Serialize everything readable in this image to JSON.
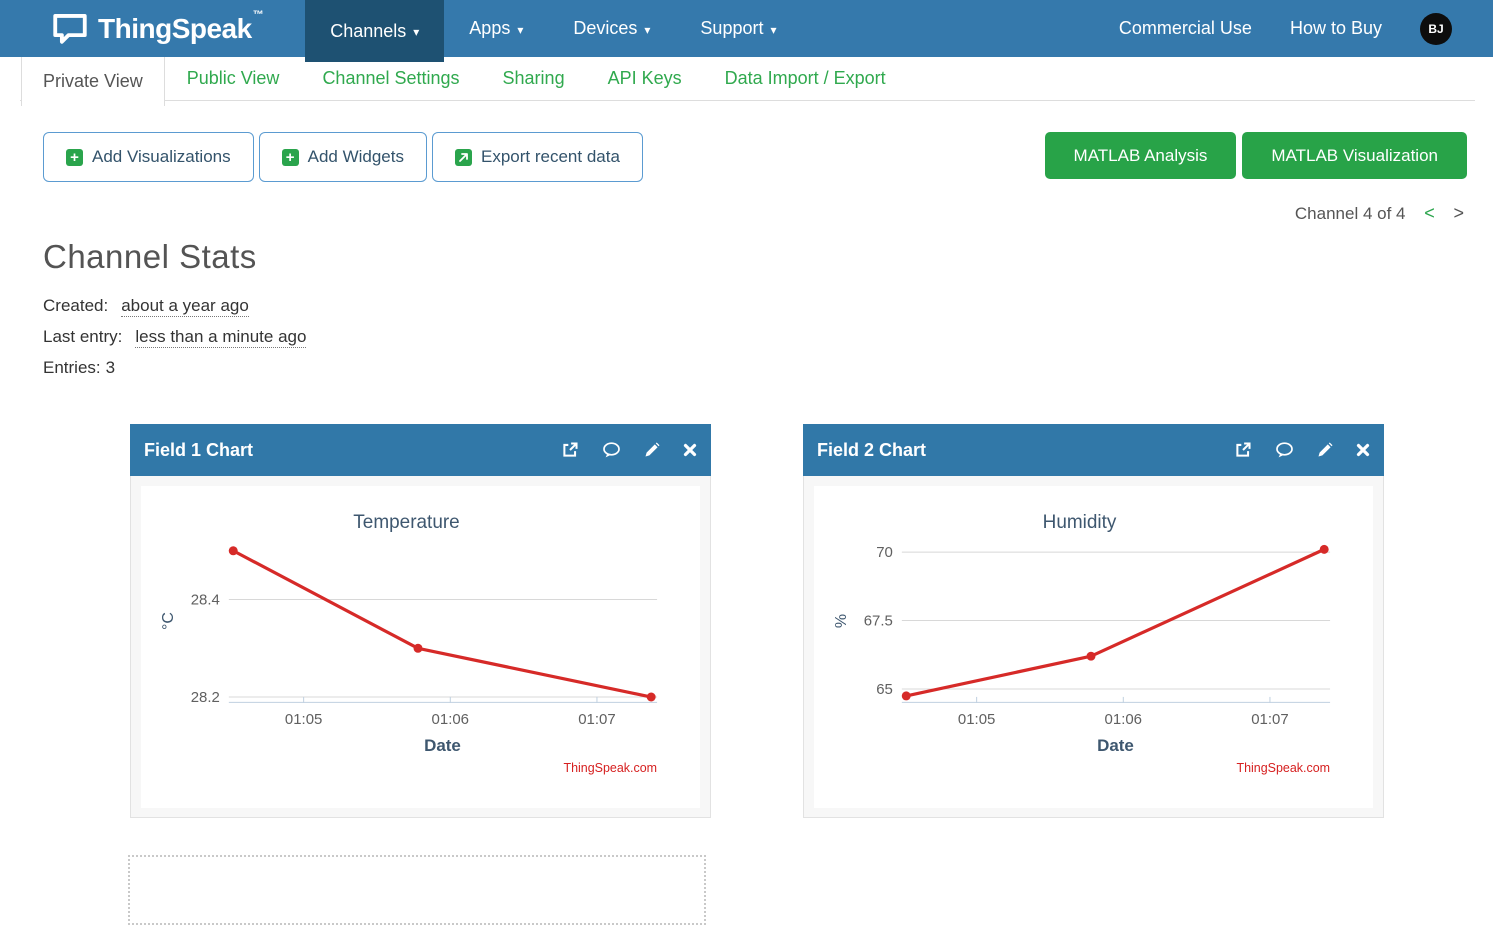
{
  "navbar": {
    "brand": "ThingSpeak",
    "brand_tm": "™",
    "items": [
      {
        "label": "Channels",
        "active": true
      },
      {
        "label": "Apps",
        "active": false
      },
      {
        "label": "Devices",
        "active": false
      },
      {
        "label": "Support",
        "active": false
      }
    ],
    "right_items": [
      {
        "label": "Commercial Use"
      },
      {
        "label": "How to Buy"
      }
    ],
    "avatar_initials": "BJ"
  },
  "tabs": {
    "items": [
      {
        "label": "Private View",
        "active": true
      },
      {
        "label": "Public View",
        "active": false
      },
      {
        "label": "Channel Settings",
        "active": false
      },
      {
        "label": "Sharing",
        "active": false
      },
      {
        "label": "API Keys",
        "active": false
      },
      {
        "label": "Data Import / Export",
        "active": false
      }
    ]
  },
  "toolbar": {
    "outline_buttons": [
      {
        "label": "Add Visualizations",
        "icon": "plus-icon"
      },
      {
        "label": "Add Widgets",
        "icon": "plus-icon"
      },
      {
        "label": "Export recent data",
        "icon": "export-arrow-icon"
      }
    ],
    "matlab_buttons": [
      {
        "label": "MATLAB Analysis"
      },
      {
        "label": "MATLAB Visualization"
      }
    ]
  },
  "pager": {
    "text": "Channel 4 of 4"
  },
  "stats": {
    "heading": "Channel Stats",
    "rows": [
      {
        "label": "Created:",
        "value": "about a year ago",
        "dotted": true
      },
      {
        "label": "Last entry:",
        "value": "less than a minute ago",
        "dotted": true
      },
      {
        "label": "Entries:",
        "value": "3",
        "dotted": false
      }
    ]
  },
  "cards": [
    {
      "header": "Field 1 Chart"
    },
    {
      "header": "Field 2 Chart"
    }
  ],
  "chart_data": [
    {
      "type": "line",
      "title": "Temperature",
      "xlabel": "Date",
      "ylabel": "°C",
      "credit": "ThingSpeak.com",
      "series": [
        {
          "name": "Field 1",
          "color": "#d62a28",
          "x": [
            64.52,
            65.78,
            67.37
          ],
          "y": [
            28.5,
            28.3,
            28.2
          ]
        }
      ],
      "x_unit": "minutes after 01:00",
      "xticks": [
        {
          "value": 65,
          "label": "01:05"
        },
        {
          "value": 66,
          "label": "01:06"
        },
        {
          "value": 67,
          "label": "01:07"
        }
      ],
      "yticks": [
        {
          "value": 28.4,
          "label": "28.4"
        },
        {
          "value": 28.2,
          "label": "28.2"
        }
      ],
      "xlim": [
        64.49,
        67.41
      ],
      "ylim": [
        28.19,
        28.53
      ],
      "grid": true,
      "legend": "none"
    },
    {
      "type": "line",
      "title": "Humidity",
      "xlabel": "Date",
      "ylabel": "%",
      "credit": "ThingSpeak.com",
      "series": [
        {
          "name": "Field 2",
          "color": "#d62a28",
          "x": [
            64.52,
            65.78,
            67.37
          ],
          "y": [
            64.75,
            66.2,
            70.1
          ]
        }
      ],
      "x_unit": "minutes after 01:00",
      "xticks": [
        {
          "value": 65,
          "label": "01:05"
        },
        {
          "value": 66,
          "label": "01:06"
        },
        {
          "value": 67,
          "label": "01:07"
        }
      ],
      "yticks": [
        {
          "value": 70,
          "label": "70"
        },
        {
          "value": 67.5,
          "label": "67.5"
        },
        {
          "value": 65,
          "label": "65"
        }
      ],
      "xlim": [
        64.49,
        67.41
      ],
      "ylim": [
        64.53,
        70.58
      ],
      "grid": true,
      "legend": "none"
    }
  ],
  "icons": {
    "caret_down": "▾",
    "plus": "+",
    "prev_chevron": "<",
    "next_chevron": ">"
  },
  "colors": {
    "navbar_blue": "#3579ac",
    "navbar_active_blue": "#1e5172",
    "card_header_blue": "#3178a8",
    "link_green": "#30a94e",
    "button_green": "#28a348",
    "icon_green": "#2aa44c",
    "line_red": "#d62a28",
    "credit_red": "#d62020",
    "chart_text_slate": "#3E576F",
    "tick_gray": "#606060"
  }
}
